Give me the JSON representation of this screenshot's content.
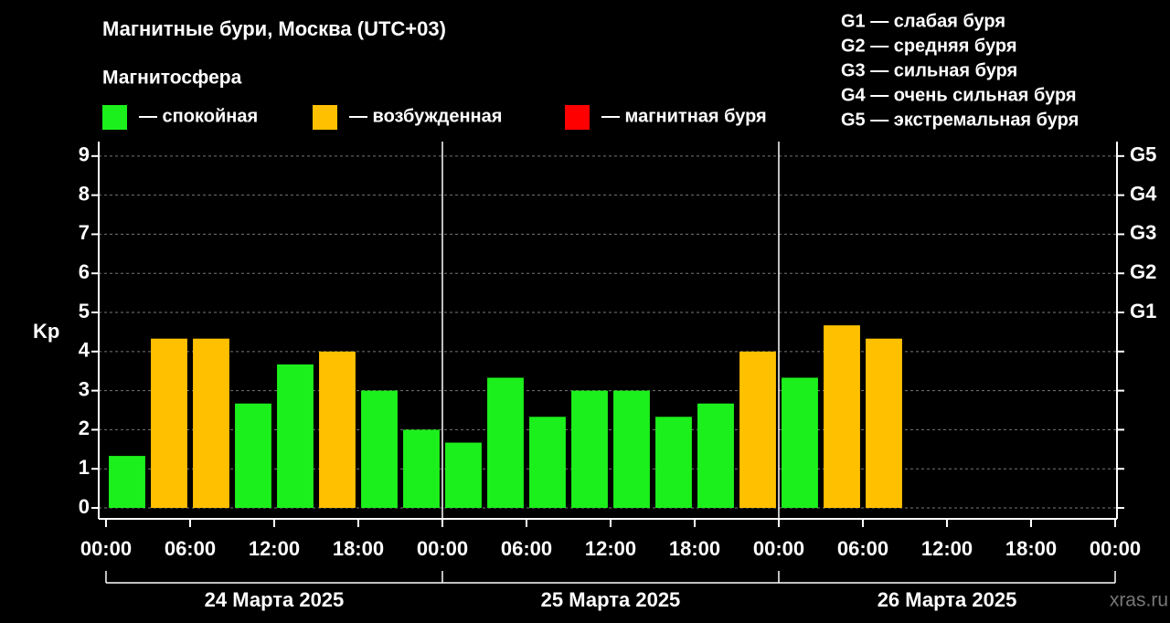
{
  "chart_data": {
    "type": "bar",
    "title": "Магнитные бури, Москва (UTC+03)",
    "legend_title": "Магнитосфера",
    "legend": [
      {
        "name": "— спокойная",
        "color": "#1cf01c"
      },
      {
        "name": "— возбужденная",
        "color": "#ffc000"
      },
      {
        "name": "— магнитная буря",
        "color": "#ff0000"
      }
    ],
    "g_scale": [
      "G1 — слабая буря",
      "G2 — средняя буря",
      "G3 — сильная буря",
      "G4 — очень сильная буря",
      "G5 — экстремальная буря"
    ],
    "ylabel": "Kp",
    "x": [
      1.5,
      4.5,
      7.5,
      10.5,
      13.5,
      16.5,
      19.5,
      22.5,
      25.5,
      28.5,
      31.5,
      34.5,
      37.5,
      40.5,
      43.5,
      46.5,
      49.5,
      52.5,
      55.5
    ],
    "values": [
      1.33,
      4.33,
      4.33,
      2.67,
      3.67,
      4.0,
      3.0,
      2.0,
      1.67,
      3.33,
      2.33,
      3.0,
      3.0,
      2.33,
      2.67,
      4.0,
      3.33,
      4.67,
      4.33
    ],
    "colors": [
      "#1cf01c",
      "#ffc000",
      "#ffc000",
      "#1cf01c",
      "#1cf01c",
      "#ffc000",
      "#1cf01c",
      "#1cf01c",
      "#1cf01c",
      "#1cf01c",
      "#1cf01c",
      "#1cf01c",
      "#1cf01c",
      "#1cf01c",
      "#1cf01c",
      "#ffc000",
      "#1cf01c",
      "#ffc000",
      "#ffc000"
    ],
    "xlim": [
      -0.52,
      72.13
    ],
    "xticks": [
      {
        "value": 0,
        "label": "00:00"
      },
      {
        "value": 6,
        "label": "06:00"
      },
      {
        "value": 12,
        "label": "12:00"
      },
      {
        "value": 18,
        "label": "18:00"
      },
      {
        "value": 24,
        "label": "00:00"
      },
      {
        "value": 30,
        "label": "06:00"
      },
      {
        "value": 36,
        "label": "12:00"
      },
      {
        "value": 42,
        "label": "18:00"
      },
      {
        "value": 48,
        "label": "00:00"
      },
      {
        "value": 54,
        "label": "06:00"
      },
      {
        "value": 60,
        "label": "12:00"
      },
      {
        "value": 66,
        "label": "18:00"
      },
      {
        "value": 72,
        "label": "00:00"
      }
    ],
    "day_ticks": [
      0,
      24,
      48,
      72
    ],
    "days": [
      "24 Марта 2025",
      "25 Марта 2025",
      "26 Марта 2025"
    ],
    "ylim": [
      -0.28,
      9.37
    ],
    "yticks": [
      0,
      1,
      2,
      3,
      4,
      5,
      6,
      7,
      8,
      9
    ],
    "y2lim": [
      -0.28,
      9.37
    ],
    "y2ticks": [
      {
        "value": 5,
        "label": "G1"
      },
      {
        "value": 6,
        "label": "G2"
      },
      {
        "value": 7,
        "label": "G3"
      },
      {
        "value": 8,
        "label": "G4"
      },
      {
        "value": 9,
        "label": "G5"
      }
    ],
    "grid": true,
    "watermark": "xras.ru"
  }
}
